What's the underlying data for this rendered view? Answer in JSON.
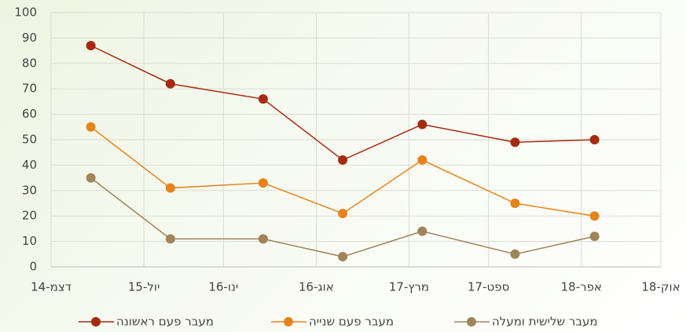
{
  "chart_data": {
    "type": "line",
    "x": [
      "2015-03",
      "2015-09",
      "2016-04",
      "2016-10",
      "2017-04",
      "2017-11",
      "2018-05"
    ],
    "series": [
      {
        "name": "מעבר פעם ראשונה",
        "color": "#a52a10",
        "values": [
          87,
          72,
          66,
          42,
          56,
          49,
          50
        ]
      },
      {
        "name": "מעבר פעם שנייה",
        "color": "#e8831c",
        "values": [
          55,
          31,
          33,
          21,
          42,
          25,
          20
        ]
      },
      {
        "name": "מעבר שלישית ומעלה",
        "color": "#a0845a",
        "values": [
          35,
          11,
          11,
          4,
          14,
          5,
          12
        ]
      }
    ],
    "xlim": [
      "2014-12",
      "2018-10"
    ],
    "xticks": [
      {
        "value": "2014-12",
        "label": "דצמ-14"
      },
      {
        "value": "2015-07",
        "label": "יול-15"
      },
      {
        "value": "2016-01",
        "label": "ינו-16"
      },
      {
        "value": "2016-08",
        "label": "אוג-16"
      },
      {
        "value": "2017-03",
        "label": "מרץ-17"
      },
      {
        "value": "2017-09",
        "label": "ספט-17"
      },
      {
        "value": "2018-04",
        "label": "אפר-18"
      },
      {
        "value": "2018-10",
        "label": "אוק-18"
      }
    ],
    "ylim": [
      0,
      100
    ],
    "yticks": [
      0,
      10,
      20,
      30,
      40,
      50,
      60,
      70,
      80,
      90,
      100
    ],
    "grid": true,
    "legend": "bottom"
  }
}
